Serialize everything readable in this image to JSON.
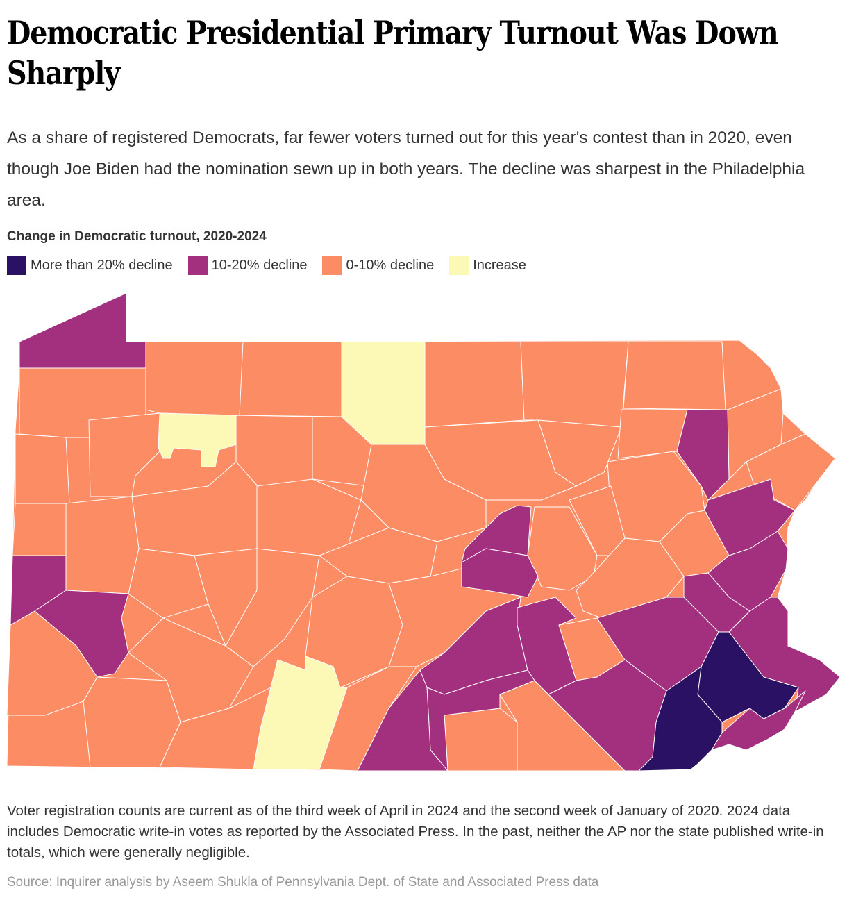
{
  "title": "Democratic Presidential Primary Turnout Was Down Sharply",
  "subtitle": "As a share of registered Democrats, far fewer voters turned out for this year's contest than in 2020, even though Joe Biden had the nomination sewn up in both years. The decline was sharpest in the Philadelphia area.",
  "legend": {
    "title": "Change in Democratic turnout, 2020-2024",
    "items": [
      {
        "label": "More than 20% decline",
        "color": "#2a1163"
      },
      {
        "label": "10-20% decline",
        "color": "#a3307e"
      },
      {
        "label": "0-10% decline",
        "color": "#fc8c64"
      },
      {
        "label": "Increase",
        "color": "#fcf9b6"
      }
    ]
  },
  "categories": {
    "more_than_20": "#2a1163",
    "d10_20": "#a3307e",
    "d0_10": "#fc8c64",
    "increase": "#fcf9b6"
  },
  "note": "Voter registration counts are current as of the third week of April in 2024 and the second week of January of 2020. 2024 data includes Democratic write-in votes as reported by the Associated Press. In the past, neither the AP nor the state published write-in totals, which were generally negligible.",
  "source": "Source: Inquirer analysis by Aseem Shukla of Pennsylvania Dept. of State and Associated Press data"
}
